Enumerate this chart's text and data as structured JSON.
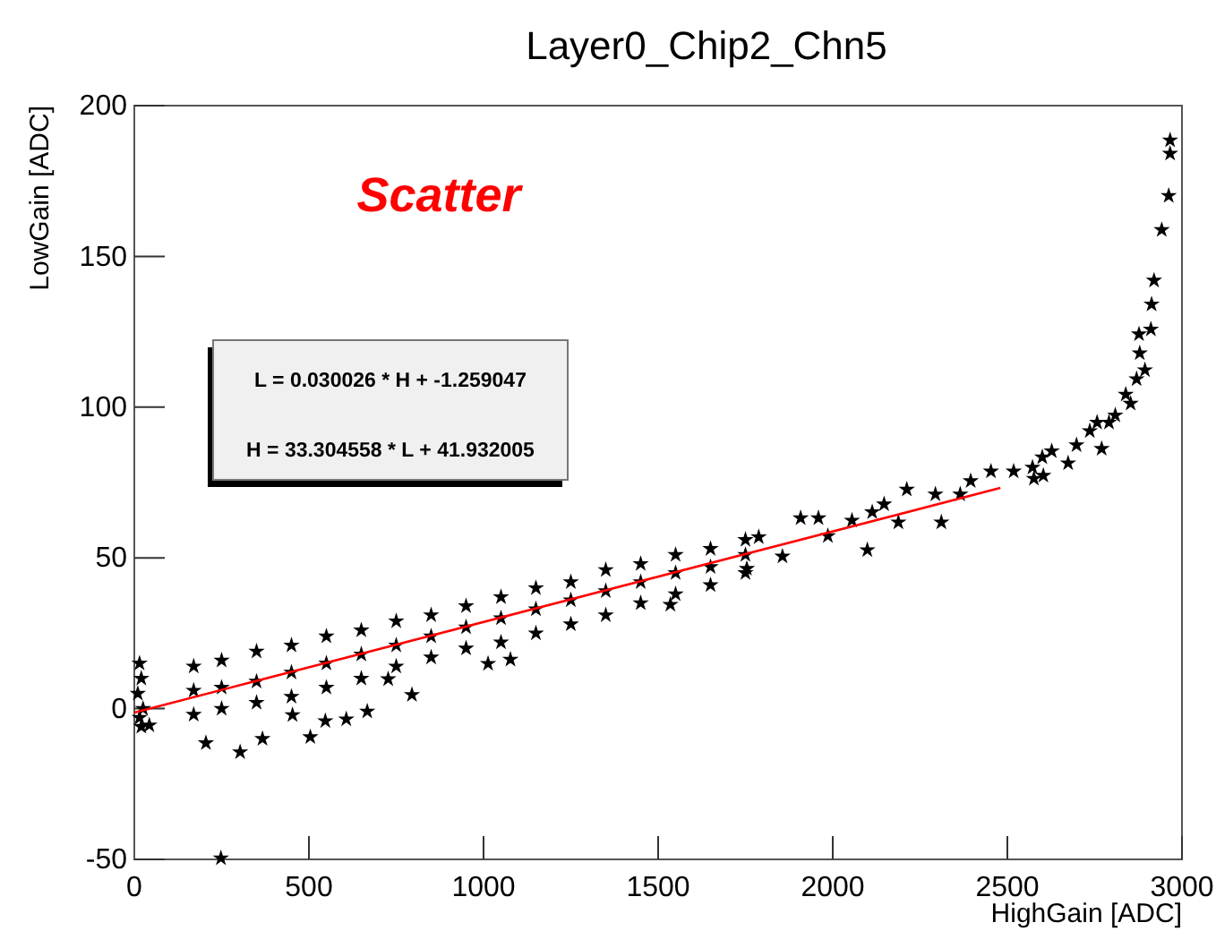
{
  "chart_data": {
    "type": "scatter",
    "title": "Layer0_Chip2_Chn5",
    "xlabel": "HighGain [ADC]",
    "ylabel": "LowGain [ADC]",
    "annotations": [
      "Scatter",
      "L = 0.030026 * H + -1.259047",
      "H = 33.304558 * L + 41.932005"
    ],
    "xlim": [
      0,
      3000
    ],
    "ylim": [
      -50,
      200
    ],
    "xticks": [
      0,
      500,
      1000,
      1500,
      2000,
      2500,
      3000
    ],
    "yticks": [
      -50,
      0,
      50,
      100,
      150,
      200
    ],
    "grid": false,
    "series": [
      {
        "type": "scatter",
        "marker": "star",
        "color": "#000000",
        "x": [
          15,
          20,
          10,
          25,
          15,
          20,
          43,
          170,
          170,
          170,
          250,
          250,
          250,
          350,
          350,
          350,
          450,
          450,
          450,
          550,
          550,
          550,
          650,
          650,
          650,
          750,
          750,
          750,
          850,
          850,
          850,
          950,
          950,
          950,
          1050,
          1050,
          1050,
          1150,
          1150,
          1150,
          1250,
          1250,
          1250,
          1350,
          1350,
          1350,
          1450,
          1450,
          1450,
          1550,
          1550,
          1550,
          1650,
          1650,
          1650,
          1750,
          1750,
          1750,
          205,
          303,
          248,
          367,
          504,
          667,
          547,
          607,
          795,
          727,
          1013,
          1077,
          453,
          1535,
          1754,
          1788,
          1856,
          1908,
          1959,
          1986,
          2055,
          2099,
          2113,
          2147,
          2188,
          2212,
          2294,
          2311,
          2365,
          2395,
          2453,
          2518,
          2572,
          2576,
          2600,
          2603,
          2627,
          2674,
          2698,
          2736,
          2757,
          2770,
          2791,
          2809,
          2839,
          2853,
          2870,
          2879,
          2877,
          2894,
          2911,
          2913,
          2920,
          2942,
          2962,
          2966,
          2966
        ],
        "values": [
          15,
          10,
          5,
          0,
          -3,
          -6,
          -5.5,
          14,
          6,
          -2,
          16,
          7,
          0,
          19,
          9,
          2,
          21,
          12,
          4,
          24,
          15,
          7,
          26,
          18,
          10,
          29,
          21,
          14,
          31,
          24,
          17,
          34,
          27,
          20,
          37,
          30,
          22,
          40,
          33,
          25,
          42,
          36,
          28,
          46,
          39,
          31,
          48,
          42,
          35,
          51,
          45,
          38,
          53,
          47,
          41,
          56,
          51,
          45,
          -11.4,
          -14.4,
          -49.6,
          -10,
          -9.4,
          -0.9,
          -4.1,
          -3.5,
          4.6,
          9.8,
          14.9,
          16.3,
          -2.1,
          34.5,
          46.4,
          56.9,
          50.5,
          63.2,
          63.2,
          57.3,
          62.4,
          52.6,
          65.2,
          67.8,
          61.8,
          72.7,
          71.1,
          61.8,
          71.1,
          75.5,
          78.7,
          78.7,
          80,
          76.3,
          83.4,
          77.3,
          85.4,
          81.4,
          87.4,
          92.1,
          94.9,
          86.2,
          94.9,
          97.3,
          104.2,
          101.2,
          109.3,
          117.9,
          124.2,
          112.3,
          125.8,
          134.1,
          142,
          158.8,
          170.1,
          184.1,
          188.5
        ]
      },
      {
        "type": "line",
        "color": "#ff0000",
        "x": [
          0,
          2480
        ],
        "values": [
          -1.3,
          73.2
        ]
      }
    ]
  }
}
